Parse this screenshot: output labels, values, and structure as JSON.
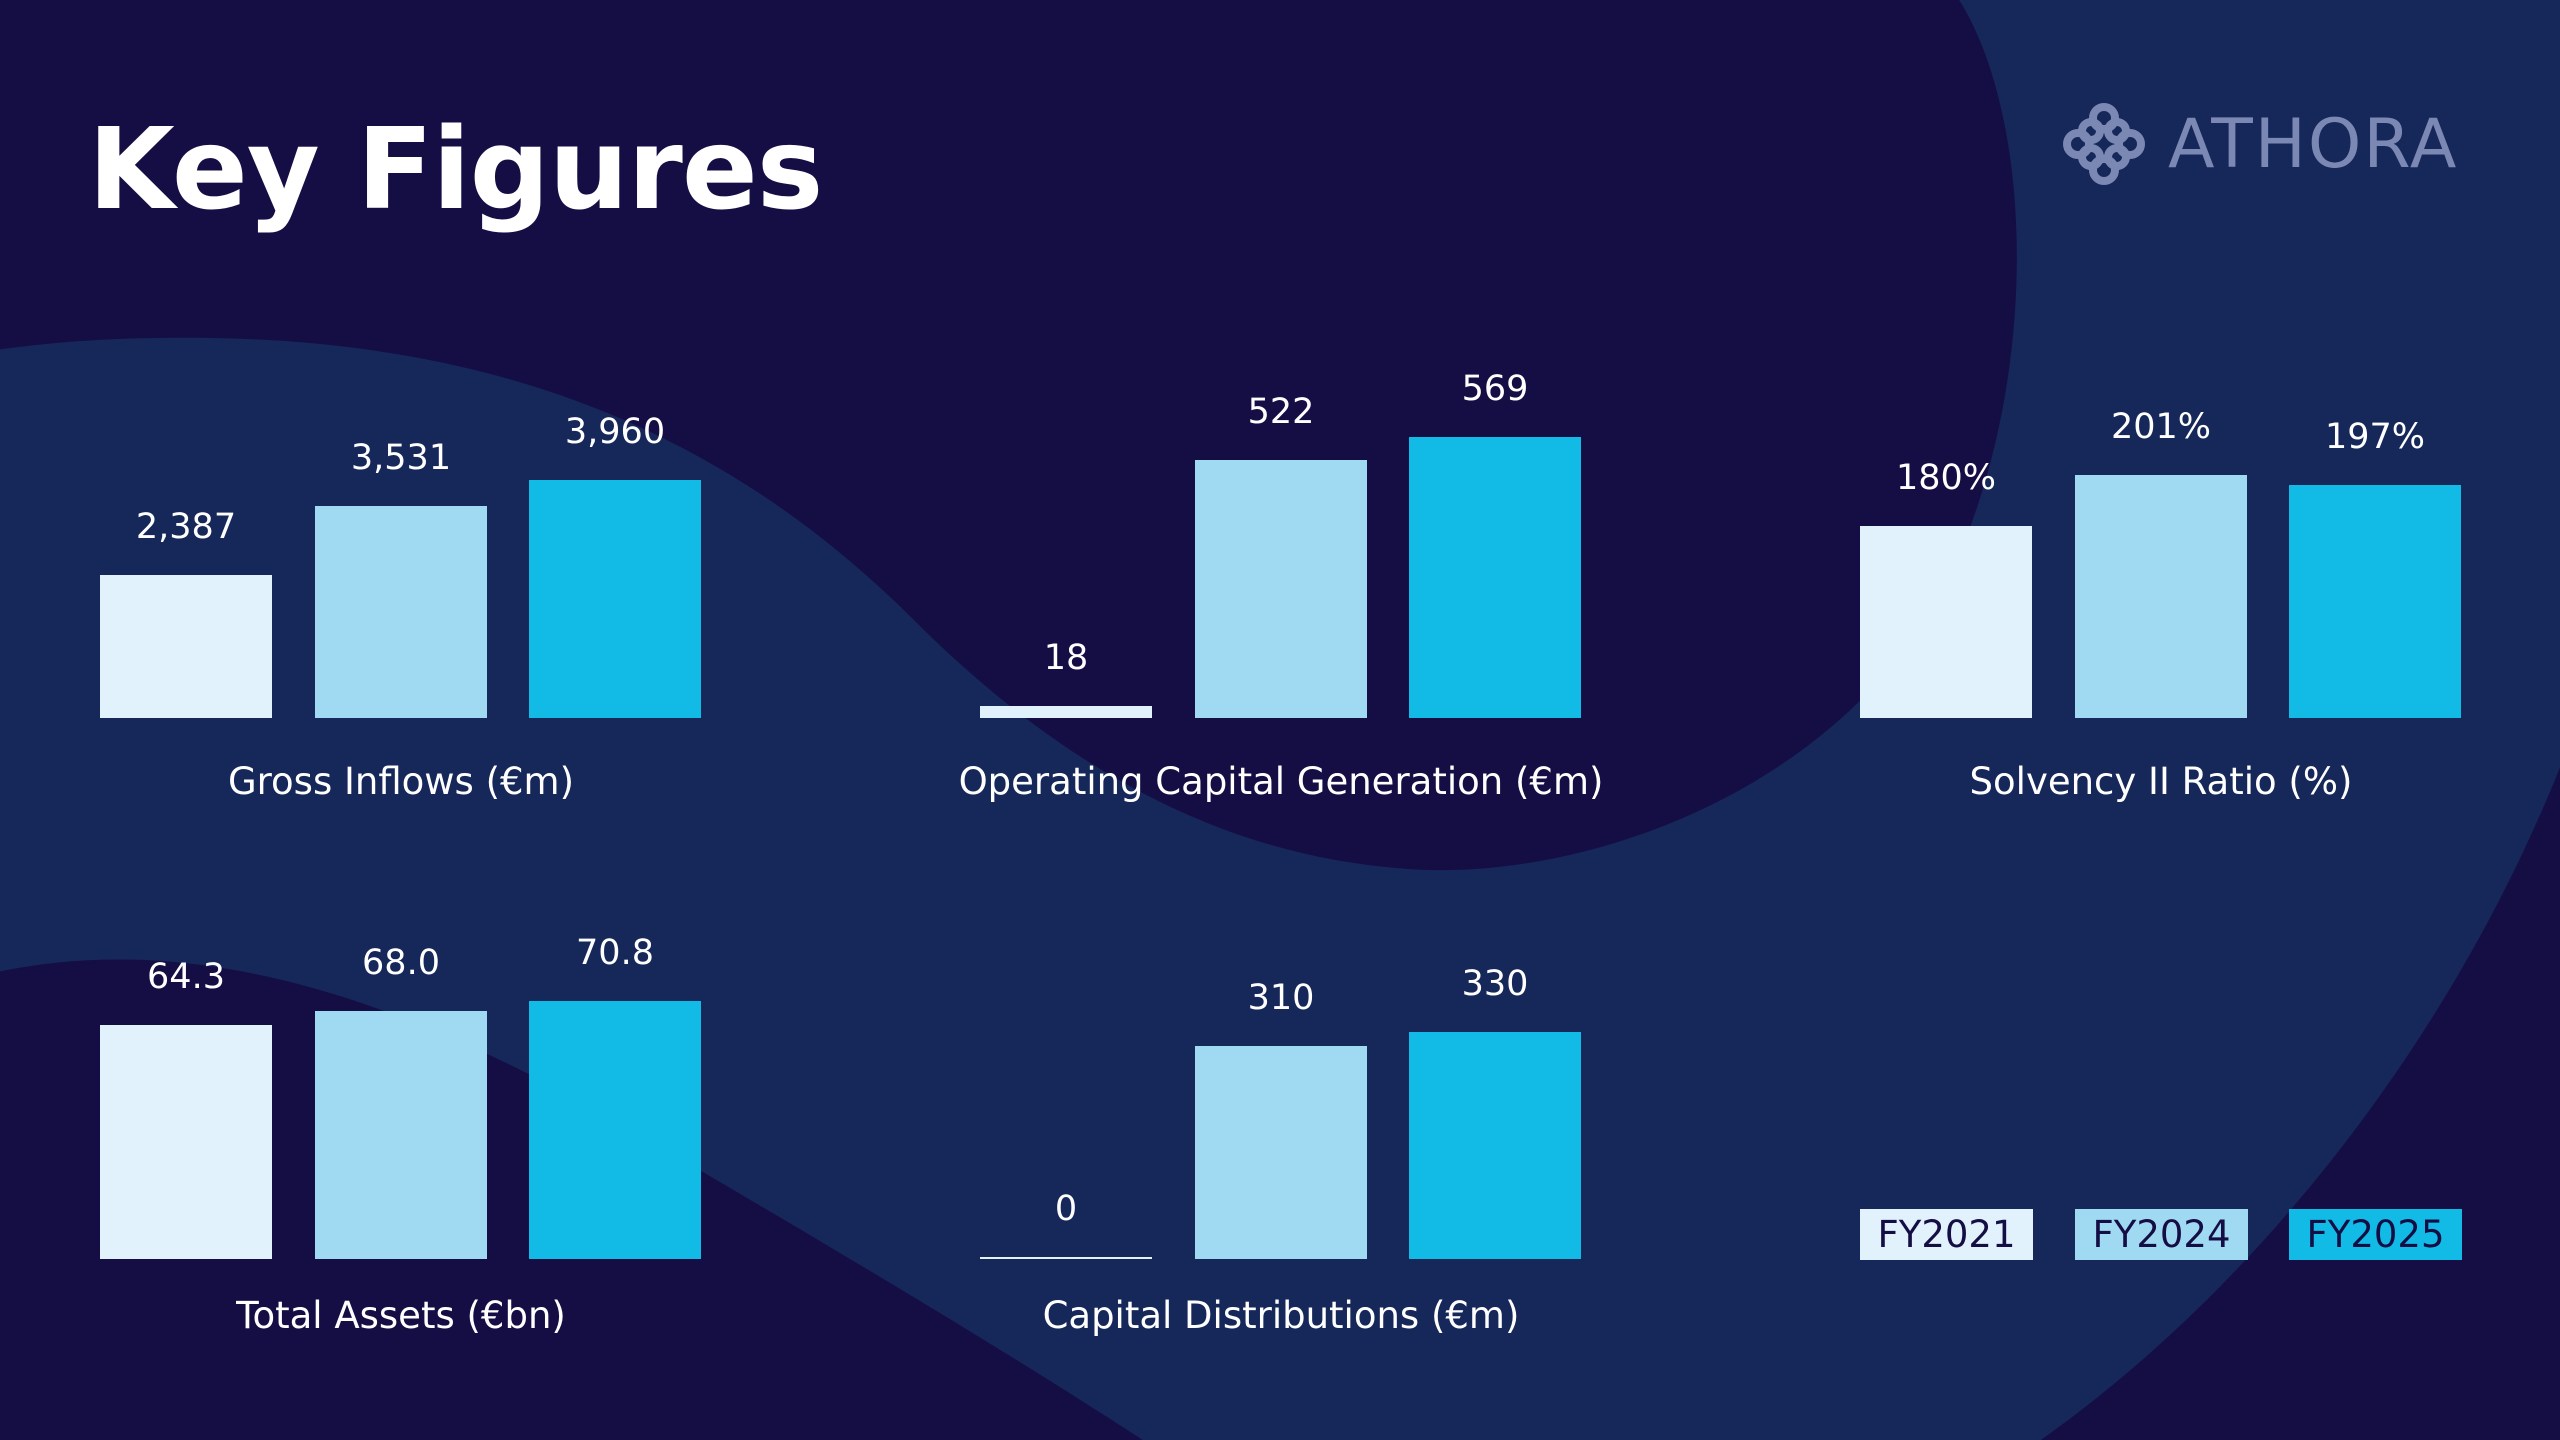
{
  "title": "Key Figures",
  "logo": {
    "text": "ATHORA"
  },
  "colors": {
    "FY2021": "#e1f2fc",
    "FY2024": "#a0d9f2",
    "FY2025": "#12bae6",
    "background": "#16275a",
    "dark": "#150e45"
  },
  "legend": [
    "FY2021",
    "FY2024",
    "FY2025"
  ],
  "chart_data": [
    {
      "type": "bar",
      "title": "Gross Inflows (€m)",
      "categories": [
        "FY2021",
        "FY2024",
        "FY2025"
      ],
      "values": [
        2387,
        3531,
        3960
      ],
      "labels": [
        "2,387",
        "3,531",
        "3,960"
      ],
      "ylim": [
        0,
        3960
      ]
    },
    {
      "type": "bar",
      "title": "Operating Capital Generation (€m)",
      "categories": [
        "FY2021",
        "FY2024",
        "FY2025"
      ],
      "values": [
        18,
        522,
        569
      ],
      "labels": [
        "18",
        "522",
        "569"
      ],
      "ylim": [
        0,
        569
      ]
    },
    {
      "type": "bar",
      "title": "Solvency II Ratio (%)",
      "categories": [
        "FY2021",
        "FY2024",
        "FY2025"
      ],
      "values": [
        180,
        201,
        197
      ],
      "labels": [
        "180%",
        "201%",
        "197%"
      ],
      "ylim": [
        100,
        201
      ]
    },
    {
      "type": "bar",
      "title": "Total Assets (€bn)",
      "categories": [
        "FY2021",
        "FY2024",
        "FY2025"
      ],
      "values": [
        64.3,
        68.0,
        70.8
      ],
      "labels": [
        "64.3",
        "68.0",
        "70.8"
      ],
      "ylim": [
        0,
        70.8
      ]
    },
    {
      "type": "bar",
      "title": "Capital Distributions (€m)",
      "categories": [
        "FY2021",
        "FY2024",
        "FY2025"
      ],
      "values": [
        0,
        310,
        330
      ],
      "labels": [
        "0",
        "310",
        "330"
      ],
      "ylim": [
        0,
        330
      ]
    }
  ]
}
